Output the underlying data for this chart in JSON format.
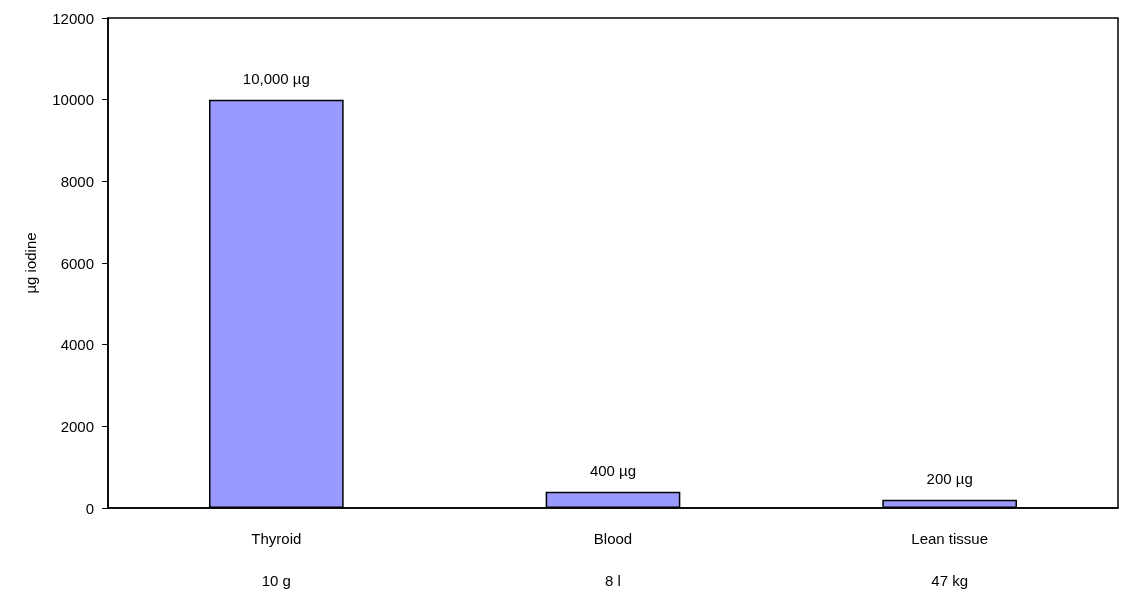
{
  "chart_data": {
    "type": "bar",
    "ylabel": "µg iodine",
    "categories": [
      "Thyroid\n\n10 g",
      "Blood\n\n8 l",
      "Lean tissue\n\n47 kg"
    ],
    "values": [
      10000,
      400,
      200
    ],
    "value_labels": [
      "10,000 µg",
      "400 µg",
      "200 µg"
    ],
    "color": "#9999ff",
    "ylim": [
      0,
      12000
    ],
    "yticks": [
      0,
      2000,
      4000,
      6000,
      8000,
      10000,
      12000
    ],
    "grid": false
  }
}
